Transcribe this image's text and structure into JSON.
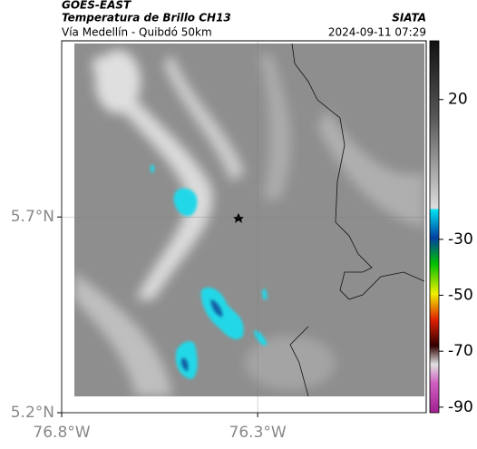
{
  "header": {
    "source": "GOES-EAST",
    "product": "Temperatura de Brillo CH13",
    "route": "Vía Medellín - Quibdó 50km",
    "agency": "SIATA",
    "timestamp": "2024-09-11 07:29"
  },
  "map": {
    "xlim": [
      -76.8,
      -75.87
    ],
    "ylim": [
      5.2,
      6.15
    ],
    "xticks": [
      {
        "value": -76.8,
        "label": "76.8°W"
      },
      {
        "value": -76.3,
        "label": "76.3°W"
      }
    ],
    "yticks": [
      {
        "value": 5.2,
        "label": "5.2°N"
      },
      {
        "value": 5.7,
        "label": "5.7°N"
      }
    ],
    "grid": true
  },
  "colorbar": {
    "lim": [
      -92,
      41
    ],
    "ticks": [
      20,
      -30,
      -50,
      -70,
      -90
    ]
  }
}
